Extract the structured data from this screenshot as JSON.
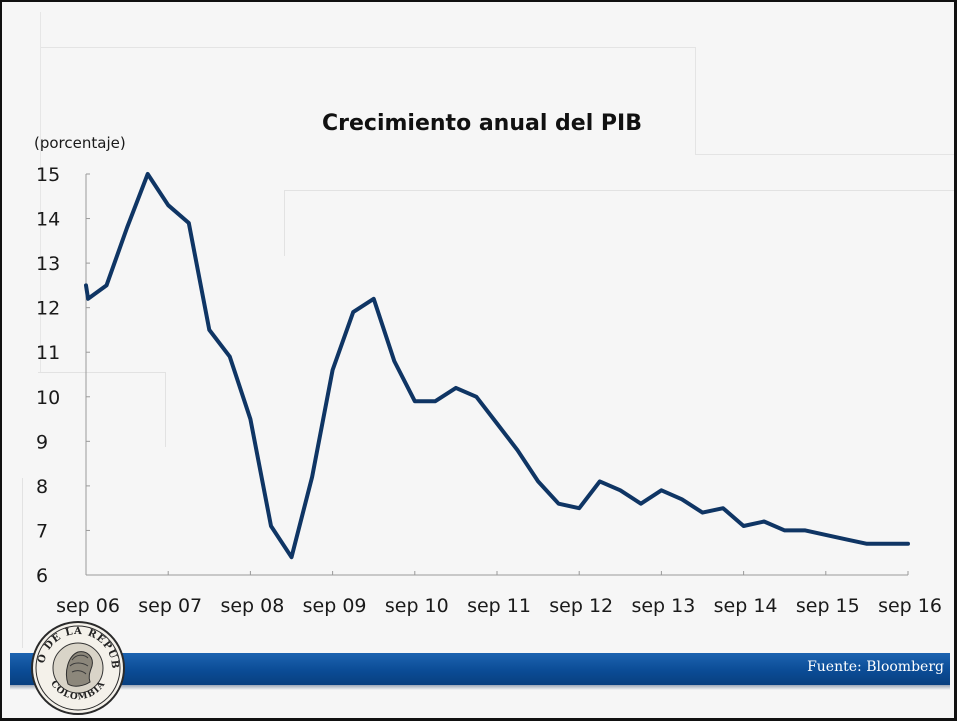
{
  "slide": {
    "title": "Crecimiento anual del PIB",
    "unit_label": "(porcentaje)",
    "source": "Fuente: Bloomberg",
    "logo": {
      "top_text": "BANCO DE LA REPUBLICA",
      "bottom_text": "COLOMBIA"
    },
    "colors": {
      "line": "#0f3564",
      "footer_bar": "#0b4c96",
      "background": "#f6f6f6"
    }
  },
  "chart_data": {
    "type": "line",
    "title": "Crecimiento anual del PIB",
    "ylabel": "(porcentaje)",
    "xlabel": "",
    "ylim": [
      6,
      15
    ],
    "yticks": [
      6,
      7,
      8,
      9,
      10,
      11,
      12,
      13,
      14,
      15
    ],
    "x_tick_labels": [
      "sep 06",
      "sep 07",
      "sep 08",
      "sep 09",
      "sep 10",
      "sep 11",
      "sep 12",
      "sep 13",
      "sep 14",
      "sep 15",
      "sep 16"
    ],
    "x_range_quarters": [
      0,
      40
    ],
    "grid": false,
    "series": [
      {
        "values": [
          {
            "q": 0,
            "y": 12.5
          },
          {
            "q": 0.1,
            "y": 12.2
          },
          {
            "q": 1,
            "y": 12.5
          },
          {
            "q": 2,
            "y": 13.8
          },
          {
            "q": 3,
            "y": 15.0
          },
          {
            "q": 4,
            "y": 14.3
          },
          {
            "q": 5,
            "y": 13.9
          },
          {
            "q": 6,
            "y": 11.5
          },
          {
            "q": 7,
            "y": 10.9
          },
          {
            "q": 8,
            "y": 9.5
          },
          {
            "q": 9,
            "y": 7.1
          },
          {
            "q": 10,
            "y": 6.4
          },
          {
            "q": 11,
            "y": 8.2
          },
          {
            "q": 12,
            "y": 10.6
          },
          {
            "q": 13,
            "y": 11.9
          },
          {
            "q": 14,
            "y": 12.2
          },
          {
            "q": 15,
            "y": 10.8
          },
          {
            "q": 16,
            "y": 9.9
          },
          {
            "q": 17,
            "y": 9.9
          },
          {
            "q": 18,
            "y": 10.2
          },
          {
            "q": 19,
            "y": 10.0
          },
          {
            "q": 20,
            "y": 9.4
          },
          {
            "q": 21,
            "y": 8.8
          },
          {
            "q": 22,
            "y": 8.1
          },
          {
            "q": 23,
            "y": 7.6
          },
          {
            "q": 24,
            "y": 7.5
          },
          {
            "q": 25,
            "y": 8.1
          },
          {
            "q": 26,
            "y": 7.9
          },
          {
            "q": 27,
            "y": 7.6
          },
          {
            "q": 28,
            "y": 7.9
          },
          {
            "q": 29,
            "y": 7.7
          },
          {
            "q": 30,
            "y": 7.4
          },
          {
            "q": 31,
            "y": 7.5
          },
          {
            "q": 32,
            "y": 7.1
          },
          {
            "q": 33,
            "y": 7.2
          },
          {
            "q": 34,
            "y": 7.0
          },
          {
            "q": 35,
            "y": 7.0
          },
          {
            "q": 36,
            "y": 6.9
          },
          {
            "q": 37,
            "y": 6.8
          },
          {
            "q": 38,
            "y": 6.7
          },
          {
            "q": 39,
            "y": 6.7
          },
          {
            "q": 40,
            "y": 6.7
          }
        ]
      }
    ]
  }
}
